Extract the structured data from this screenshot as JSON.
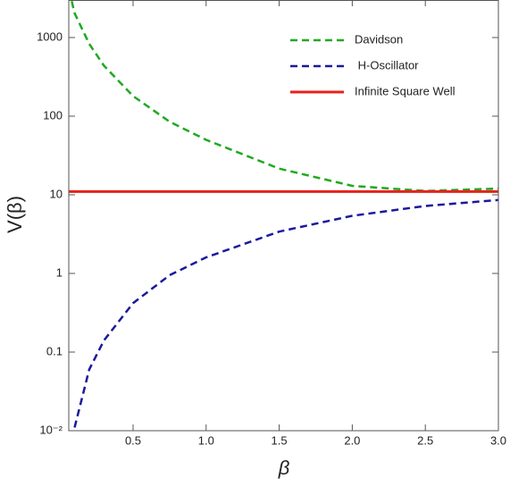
{
  "chart_data": {
    "type": "line",
    "xlabel": "β",
    "ylabel": "V(β)",
    "log_y": true,
    "grid": false,
    "legend": "upper right",
    "xlim": [
      0.06,
      3.0
    ],
    "ylim": [
      0.01,
      3000
    ],
    "xticks": [
      0.5,
      {
        "value": 1.0,
        "label": "1.0"
      },
      1.5,
      {
        "value": 2.0,
        "label": "2.0"
      },
      2.5,
      {
        "value": 3.0,
        "label": "3.0"
      }
    ],
    "yticks": [
      {
        "value": 0.01,
        "label": "10⁻²"
      },
      0.1,
      1,
      10,
      100,
      1000
    ],
    "series": [
      {
        "name": "Davidson",
        "color": "#1faa1f",
        "dash": true,
        "x": [
          0.08,
          0.1,
          0.2,
          0.3,
          0.5,
          0.75,
          1.0,
          1.5,
          2.0,
          2.5,
          3.0
        ],
        "values": [
          2900,
          2040,
          830,
          440,
          180,
          85,
          50,
          21.5,
          13,
          11.2,
          12
        ]
      },
      {
        "name": " H-Oscillator",
        "color": "#1a1a9e",
        "dash": true,
        "x": [
          0.1,
          0.2,
          0.3,
          0.5,
          0.75,
          1.0,
          1.5,
          2.0,
          2.5,
          3.0
        ],
        "values": [
          0.011,
          0.06,
          0.14,
          0.42,
          0.95,
          1.6,
          3.4,
          5.4,
          7.2,
          8.6
        ]
      },
      {
        "name": "Infinite Square Well",
        "color": "#e8201a",
        "dash": false,
        "x": [
          0.06,
          3.0
        ],
        "values": [
          11,
          11
        ]
      }
    ]
  }
}
